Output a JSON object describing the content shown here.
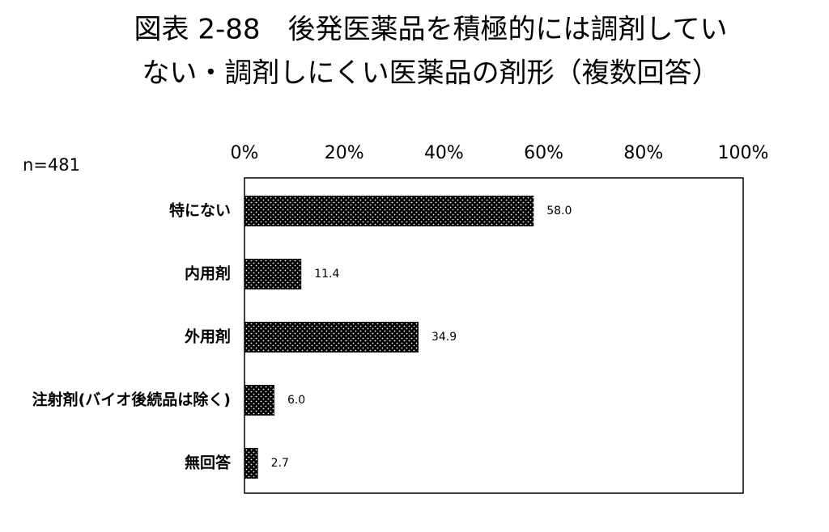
{
  "chart_data": {
    "type": "bar",
    "orientation": "horizontal",
    "title": [
      "図表 2-88　後発医薬品を積極的には調剤してい",
      "ない・調剤しにくい医薬品の剤形（複数回答）"
    ],
    "annotation": "n=481",
    "categories": [
      "特にない",
      "内用剤",
      "外用剤",
      "注射剤(バイオ後続品は除く)",
      "無回答"
    ],
    "values": [
      58.0,
      11.4,
      34.9,
      6.0,
      2.7
    ],
    "value_labels": [
      "58.0",
      "11.4",
      "34.9",
      "6.0",
      "2.7"
    ],
    "color": "#000000",
    "xlim": [
      0,
      100
    ],
    "xticks": [
      {
        "value": 0,
        "label": "0%"
      },
      {
        "value": 20,
        "label": "20%"
      },
      {
        "value": 40,
        "label": "40%"
      },
      {
        "value": 60,
        "label": "60%"
      },
      {
        "value": 80,
        "label": "80%"
      },
      {
        "value": 100,
        "label": "100%"
      }
    ],
    "grid": false
  }
}
